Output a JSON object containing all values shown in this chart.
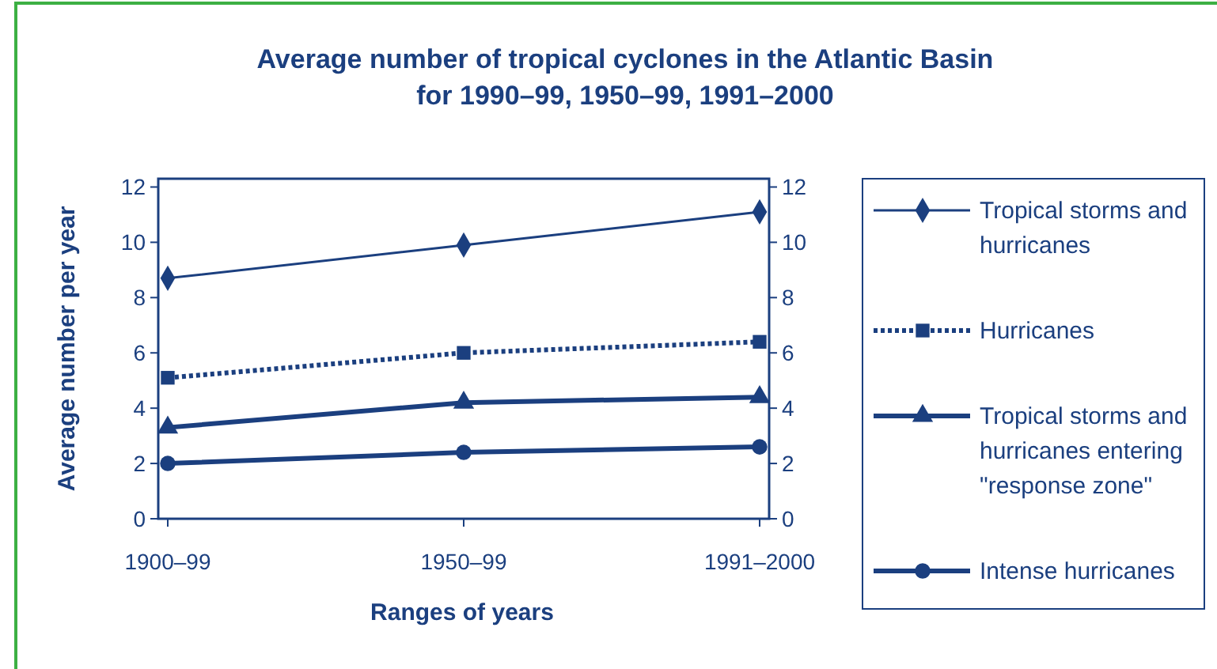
{
  "chart_data": {
    "type": "line",
    "title": "Average number of tropical cyclones in the Atlantic Basin\nfor 1990–99, 1950–99, 1991–2000",
    "xlabel": "Ranges of years",
    "ylabel": "Average number per year",
    "categories": [
      "1900–99",
      "1950–99",
      "1991–2000"
    ],
    "ylim": [
      0,
      12.3
    ],
    "yticks": [
      0,
      2,
      4,
      6,
      8,
      10,
      12
    ],
    "y2lim": [
      0,
      12.3
    ],
    "y2ticks": [
      0,
      2,
      4,
      6,
      8,
      10,
      12
    ],
    "grid": false,
    "legend": "right",
    "series": [
      {
        "name": "Tropical storms and hurricanes",
        "color": "#1b3f7f",
        "marker": "diamond",
        "line_style": "solid",
        "values": [
          8.7,
          9.9,
          11.1
        ]
      },
      {
        "name": "Hurricanes",
        "color": "#1b3f7f",
        "marker": "square",
        "line_style": "dotted",
        "values": [
          5.1,
          6.0,
          6.4
        ]
      },
      {
        "name": "Tropical storms and hurricanes entering \"response zone\"",
        "color": "#1b3f7f",
        "marker": "triangle",
        "line_style": "solid",
        "values": [
          3.3,
          4.2,
          4.4
        ]
      },
      {
        "name": "Intense hurricanes",
        "color": "#1b3f7f",
        "marker": "circle",
        "line_style": "solid",
        "values": [
          2.0,
          2.4,
          2.6
        ]
      }
    ]
  }
}
